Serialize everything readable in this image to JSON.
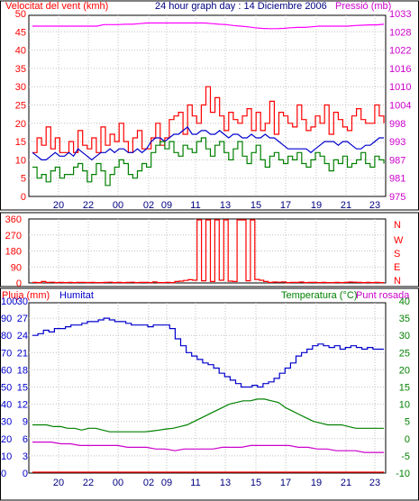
{
  "chart_data": [
    {
      "type": "line",
      "header": {
        "left_label": "Velocitat del vent (kmh)",
        "title": "24 hour graph day : 14 Diciembre 2006",
        "right_label": "Pressió (mb)"
      },
      "x_ticks": [
        "20",
        "22",
        "00",
        "02",
        "09",
        "11",
        "13",
        "15",
        "17",
        "19",
        "21",
        "23"
      ],
      "left_axis": {
        "ylim": [
          0,
          50
        ],
        "ticks": [
          "0",
          "5",
          "10",
          "15",
          "20",
          "25",
          "30",
          "35",
          "40",
          "45",
          "50"
        ]
      },
      "right_axis": {
        "ylim": [
          975,
          1033
        ],
        "ticks": [
          "975",
          "981",
          "987",
          "993",
          "998",
          "1004",
          "1010",
          "1016",
          "1022",
          "1028",
          "1033"
        ]
      },
      "series": [
        {
          "name": "",
          "axis": "left",
          "color": "#ff0000",
          "values": [
            12,
            16,
            14,
            19,
            13,
            16,
            12,
            12,
            15,
            12,
            18,
            14,
            13,
            16,
            12,
            19,
            14,
            17,
            15,
            20,
            15,
            12,
            16,
            18,
            13,
            13,
            16,
            20,
            14,
            16,
            21,
            22,
            23,
            17,
            25,
            22,
            20,
            25,
            30,
            23,
            27,
            22,
            18,
            23,
            21,
            20,
            22,
            24,
            18,
            23,
            18,
            20,
            26,
            17,
            23,
            22,
            20,
            19,
            25,
            21,
            18,
            19,
            22,
            20,
            25,
            17,
            23,
            21,
            19,
            18,
            22,
            24,
            21,
            20,
            20,
            25,
            22,
            20
          ]
        },
        {
          "name": "",
          "axis": "left",
          "color": "#0000cc",
          "values": [
            12,
            11,
            10,
            10,
            11,
            12,
            11,
            11,
            12,
            11,
            13,
            12,
            11,
            10,
            11,
            12,
            12,
            13,
            12,
            13,
            13,
            12,
            12,
            13,
            12,
            13,
            15,
            16,
            16,
            15,
            16,
            17,
            17,
            18,
            19,
            17,
            17,
            18,
            18,
            17,
            17,
            18,
            17,
            16,
            17,
            17,
            16,
            16,
            17,
            16,
            16,
            17,
            16,
            16,
            15,
            14,
            13,
            13,
            13,
            13,
            13,
            12,
            13,
            14,
            15,
            15,
            15,
            14,
            15,
            15,
            14,
            13,
            13,
            14,
            14,
            15,
            16,
            16
          ]
        },
        {
          "name": "",
          "axis": "left",
          "color": "#008000",
          "values": [
            8,
            5,
            6,
            4,
            7,
            8,
            5,
            6,
            6,
            8,
            9,
            7,
            4,
            6,
            9,
            7,
            3,
            6,
            8,
            10,
            9,
            6,
            5,
            7,
            9,
            8,
            12,
            14,
            15,
            13,
            15,
            12,
            11,
            14,
            13,
            12,
            15,
            16,
            13,
            11,
            14,
            15,
            12,
            10,
            13,
            15,
            11,
            9,
            12,
            14,
            10,
            8,
            11,
            12,
            10,
            9,
            11,
            10,
            12,
            9,
            8,
            10,
            12,
            11,
            9,
            7,
            10,
            9,
            11,
            8,
            9,
            10,
            12,
            9,
            8,
            11,
            10,
            9
          ]
        },
        {
          "name": "",
          "axis": "right",
          "color": "#ff00ff",
          "values": [
            1029,
            1029,
            1029,
            1029,
            1029,
            1029,
            1029,
            1029,
            1029,
            1029,
            1029.5,
            1029.5,
            1029.5,
            1029.6,
            1029.6,
            1029.8,
            1030,
            1030,
            1030,
            1030,
            1030,
            1030,
            1030,
            1030,
            1030,
            1029.8,
            1029.6,
            1029.5,
            1029.2,
            1029,
            1028.8,
            1028.5,
            1028.3,
            1028.2,
            1028.2,
            1028.3,
            1028.5,
            1028.6,
            1028.6,
            1028.8,
            1029,
            1029,
            1029,
            1029,
            1029,
            1029.2,
            1029.3,
            1029.4,
            1029.4,
            1029.6
          ]
        }
      ]
    },
    {
      "type": "line",
      "left_axis": {
        "ylim": [
          0,
          360
        ],
        "ticks": [
          "0",
          "90",
          "180",
          "270",
          "360"
        ]
      },
      "right_labels": [
        "N",
        "W",
        "S",
        "E",
        "N"
      ],
      "series": [
        {
          "name": "",
          "color": "#ff0000",
          "values": [
            3,
            2,
            8,
            3,
            4,
            2,
            3,
            2,
            3,
            2,
            3,
            3,
            2,
            3,
            2,
            2,
            3,
            4,
            2,
            3,
            2,
            3,
            4,
            2,
            3,
            3,
            2,
            6,
            2,
            2,
            3,
            2,
            8,
            10,
            14,
            18,
            15,
            355,
            12,
            355,
            8,
            355,
            15,
            355,
            10,
            8,
            355,
            355,
            12,
            355,
            20,
            15,
            8,
            3,
            5,
            4,
            6,
            2,
            3,
            3,
            5,
            2,
            3,
            3,
            2,
            3,
            2,
            2,
            3,
            2,
            3,
            5,
            4,
            3,
            2,
            3,
            2,
            3,
            2,
            3
          ]
        }
      ]
    },
    {
      "type": "line",
      "header": {
        "rain_label": "Pluja (mm)",
        "humidity_label": "Humitat",
        "temperature_label": "Temperatura (°C)",
        "dewpoint_label": "Punt rosada"
      },
      "x_ticks": [
        "20",
        "22",
        "00",
        "02",
        "09",
        "11",
        "13",
        "15",
        "17",
        "19",
        "21",
        "23"
      ],
      "humidity_axis": {
        "ylim": [
          0,
          100
        ],
        "ticks": [
          "0",
          "10",
          "20",
          "30",
          "40",
          "50",
          "60",
          "70",
          "80",
          "90",
          "100"
        ]
      },
      "rain_axis": {
        "ylim": [
          0,
          30
        ],
        "ticks": [
          "0",
          "3",
          "6",
          "9",
          "12",
          "15",
          "18",
          "21",
          "24",
          "27",
          "30"
        ]
      },
      "temperature_axis": {
        "ylim": [
          -10,
          40
        ],
        "ticks": [
          "-10",
          "-5",
          "0",
          "5",
          "10",
          "15",
          "20",
          "25",
          "30",
          "35",
          "40"
        ]
      },
      "series": [
        {
          "name": "",
          "axis": "humidity",
          "color": "#0000cc",
          "values": [
            80,
            81,
            83,
            82,
            84,
            84,
            85,
            86,
            86,
            87,
            88,
            88,
            89,
            90,
            89,
            88,
            88,
            87,
            86,
            86,
            86,
            85,
            86,
            86,
            86,
            84,
            78,
            74,
            70,
            68,
            66,
            64,
            63,
            61,
            58,
            56,
            54,
            52,
            50,
            50,
            51,
            50,
            52,
            53,
            55,
            58,
            61,
            64,
            68,
            70,
            72,
            74,
            75,
            74,
            73,
            74,
            72,
            73,
            74,
            73,
            72,
            73,
            72,
            72,
            72
          ]
        },
        {
          "name": "",
          "axis": "temperature",
          "color": "#008000",
          "values": [
            4,
            4,
            4,
            3.5,
            3.5,
            3,
            3,
            2.5,
            3,
            3,
            2.5,
            2,
            2,
            2,
            2,
            2,
            2,
            2.2,
            2.5,
            2.8,
            3,
            3.5,
            4,
            5,
            6,
            7,
            8,
            9,
            10,
            10.5,
            11,
            11,
            11.5,
            11.5,
            11,
            10.5,
            9,
            8,
            7,
            6,
            5,
            4.5,
            4,
            4,
            4,
            3.5,
            3,
            3,
            3,
            3,
            3
          ]
        },
        {
          "name": "",
          "axis": "temperature",
          "color": "#cc00cc",
          "values": [
            -1,
            -1,
            -1,
            -1.5,
            -1.5,
            -2,
            -2,
            -2,
            -2,
            -2,
            -2.5,
            -2.5,
            -2.5,
            -3,
            -3,
            -3.5,
            -3,
            -3,
            -3,
            -3,
            -2.5,
            -2.5,
            -2.5,
            -2,
            -2,
            -2,
            -2,
            -2,
            -2.5,
            -2.5,
            -3,
            -3,
            -3.5,
            -3.5,
            -3.5,
            -4,
            -4,
            -4
          ]
        },
        {
          "name": "",
          "axis": "rain",
          "color": "#ff0000",
          "values": [
            0,
            0,
            0,
            0,
            0,
            0,
            0,
            0,
            0,
            0,
            0,
            0,
            0
          ]
        }
      ]
    }
  ]
}
